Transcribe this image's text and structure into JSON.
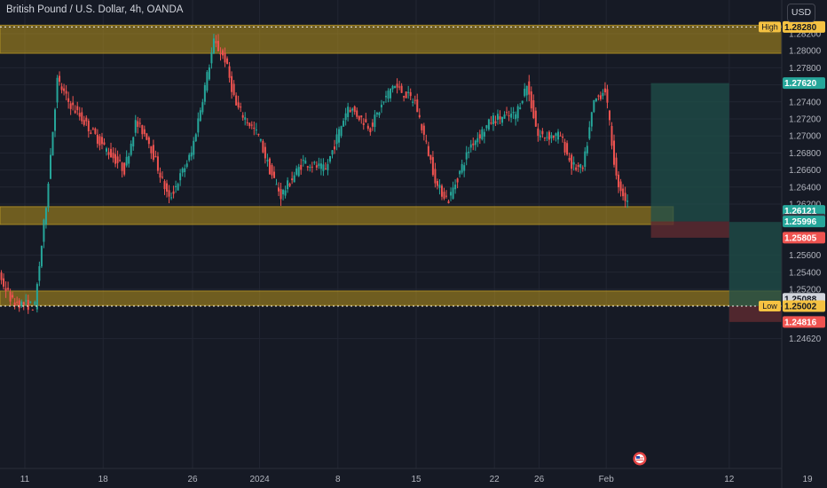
{
  "header": {
    "title": "British Pound / U.S. Dollar, 4h, OANDA",
    "currency_button": "USD"
  },
  "colors": {
    "background": "#161a25",
    "up": "#26a69a",
    "down": "#ef5350",
    "zone": "#b9961d",
    "target": "#1f4f4a",
    "stop": "#5a2a30",
    "high_low": "#f5c242"
  },
  "chart_data": {
    "type": "candlestick",
    "symbol": "GBPUSD",
    "interval": "4h",
    "ylim": [
      1.244,
      1.2838
    ],
    "y_ticks": [
      "1.28200",
      "1.28000",
      "1.27800",
      "1.27600",
      "1.27400",
      "1.27200",
      "1.27000",
      "1.26800",
      "1.26600",
      "1.26400",
      "1.26200",
      "1.25600",
      "1.25400",
      "1.25200",
      "1.24620"
    ],
    "x_ticks": [
      {
        "label": "11",
        "date": "2023-12-11"
      },
      {
        "label": "18",
        "date": "2023-12-18"
      },
      {
        "label": "26",
        "date": "2023-12-26"
      },
      {
        "label": "2024",
        "date": "2024-01-01"
      },
      {
        "label": "8",
        "date": "2024-01-08"
      },
      {
        "label": "15",
        "date": "2024-01-15"
      },
      {
        "label": "22",
        "date": "2024-01-22"
      },
      {
        "label": "26",
        "date": "2024-01-26"
      },
      {
        "label": "Feb",
        "date": "2024-02-01"
      },
      {
        "label": "12",
        "date": "2024-02-12"
      },
      {
        "label": "19",
        "date": "2024-02-19"
      }
    ],
    "price_labels": [
      {
        "value": 1.2828,
        "text": "1.28280",
        "tag": "High",
        "color": "#f5c242",
        "text_color": "#131722"
      },
      {
        "value": 1.2762,
        "text": "1.27620",
        "color": "#26a69a",
        "text_color": "#ffffff"
      },
      {
        "value": 1.26121,
        "text": "1.26121",
        "color": "#26a69a",
        "text_color": "#ffffff"
      },
      {
        "value": 1.26019,
        "text": "1.26019",
        "color": "#363a45",
        "text_color": "#ffffff"
      },
      {
        "value": 1.25996,
        "text": "1.25996",
        "color": "#26a69a",
        "text_color": "#ffffff"
      },
      {
        "value": 1.25805,
        "text": "1.25805",
        "color": "#ef5350",
        "text_color": "#ffffff"
      },
      {
        "value": 1.25088,
        "text": "1.25088",
        "color": "#d1d4dc",
        "text_color": "#131722"
      },
      {
        "value": 1.25002,
        "text": "1.25002",
        "tag": "Low",
        "color": "#f5c242",
        "text_color": "#131722"
      },
      {
        "value": 1.24816,
        "text": "1.24816",
        "color": "#ef5350",
        "text_color": "#ffffff"
      }
    ],
    "zones": [
      {
        "name": "resistance-zone",
        "from_date": "2023-12-01",
        "to_date": "2024-02-19",
        "y_top": 1.283,
        "y_bottom": 1.2797
      },
      {
        "name": "mid-support-zone",
        "from_date": "2023-12-03",
        "to_date": "2024-02-07",
        "y_top": 1.2617,
        "y_bottom": 1.2596
      },
      {
        "name": "low-support-zone",
        "from_date": "2023-12-01",
        "to_date": "2024-02-19",
        "y_top": 1.2518,
        "y_bottom": 1.2501
      }
    ],
    "positions": [
      {
        "name": "long-position",
        "from_date": "2024-02-05",
        "to_date": "2024-02-12",
        "entry": 1.25996,
        "target": 1.2762,
        "stop": 1.25805
      },
      {
        "name": "long-position-2",
        "from_date": "2024-02-12",
        "to_date": "2024-02-19",
        "entry": 1.25002,
        "target": 1.2599,
        "stop": 1.24816
      }
    ],
    "high_line": 1.2828,
    "low_line": 1.25002,
    "waypoints": [
      [
        "2023-12-01",
        1.2636
      ],
      [
        "2023-12-02",
        1.2605
      ],
      [
        "2023-12-04",
        1.256
      ],
      [
        "2023-12-06",
        1.253
      ],
      [
        "2023-12-08",
        1.2555
      ],
      [
        "2023-12-10",
        1.2505
      ],
      [
        "2023-12-12",
        1.25
      ],
      [
        "2023-12-13",
        1.262
      ],
      [
        "2023-12-14",
        1.2765
      ],
      [
        "2023-12-15",
        1.274
      ],
      [
        "2023-12-18",
        1.269
      ],
      [
        "2023-12-20",
        1.266
      ],
      [
        "2023-12-21",
        1.2715
      ],
      [
        "2023-12-22",
        1.27
      ],
      [
        "2023-12-24",
        1.2625
      ],
      [
        "2023-12-26",
        1.268
      ],
      [
        "2023-12-27",
        1.2745
      ],
      [
        "2023-12-28",
        1.281
      ],
      [
        "2023-12-29",
        1.279
      ],
      [
        "2023-12-30",
        1.2735
      ],
      [
        "2024-01-01",
        1.27
      ],
      [
        "2024-01-02",
        1.266
      ],
      [
        "2024-01-03",
        1.263
      ],
      [
        "2024-01-05",
        1.267
      ],
      [
        "2024-01-07",
        1.266
      ],
      [
        "2024-01-09",
        1.2735
      ],
      [
        "2024-01-11",
        1.271
      ],
      [
        "2024-01-13",
        1.276
      ],
      [
        "2024-01-15",
        1.274
      ],
      [
        "2024-01-17",
        1.264
      ],
      [
        "2024-01-18",
        1.2625
      ],
      [
        "2024-01-20",
        1.269
      ],
      [
        "2024-01-22",
        1.272
      ],
      [
        "2024-01-24",
        1.2725
      ],
      [
        "2024-01-25",
        1.276
      ],
      [
        "2024-01-26",
        1.27
      ],
      [
        "2024-01-28",
        1.27
      ],
      [
        "2024-01-29",
        1.2665
      ],
      [
        "2024-01-30",
        1.266
      ],
      [
        "2024-01-31",
        1.274
      ],
      [
        "2024-02-01",
        1.2755
      ],
      [
        "2024-02-02",
        1.265
      ],
      [
        "2024-02-03",
        1.262
      ],
      [
        "2024-02-05",
        1.261
      ]
    ]
  }
}
